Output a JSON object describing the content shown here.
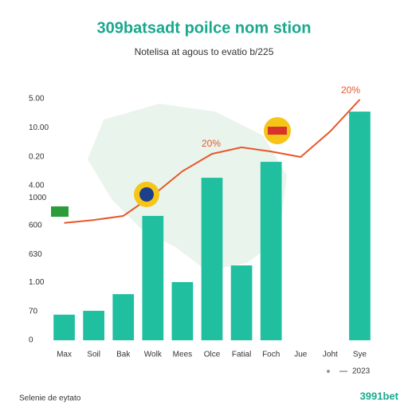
{
  "chart_data": {
    "type": "bar",
    "title": "309batsadt poilce nom stion",
    "subtitle": "Notelisa at agous to evatio b/225",
    "categories": [
      "Max",
      "Soil",
      "Bak",
      "Wolk",
      "Mees",
      "Olce",
      "Fatial",
      "Foch",
      "Jue",
      "Joht",
      "Sye"
    ],
    "values": [
      106,
      122,
      191,
      515,
      241,
      673,
      310,
      739,
      null,
      null,
      947
    ],
    "color": "#20bfa0",
    "line": {
      "name": "2023",
      "color": "#e8572a",
      "values": [
        486,
        498,
        515,
        600,
        700,
        772,
        799,
        782,
        759,
        865,
        997
      ]
    },
    "ylim": [
      0,
      1000
    ],
    "yticks": [
      {
        "value": 1000,
        "label": "5.00"
      },
      {
        "value": 880,
        "label": "10.00"
      },
      {
        "value": 760,
        "label": "0.20"
      },
      {
        "value": 640,
        "label": "4.00"
      },
      {
        "value": 590,
        "label": "1000"
      },
      {
        "value": 475,
        "label": "600"
      },
      {
        "value": 355,
        "label": "630"
      },
      {
        "value": 240,
        "label": "1.00"
      },
      {
        "value": 120,
        "label": "70"
      },
      0
    ],
    "annotations": [
      "20%",
      "20%"
    ],
    "footer": "Selenie de eytato",
    "brand": "3991bet"
  }
}
